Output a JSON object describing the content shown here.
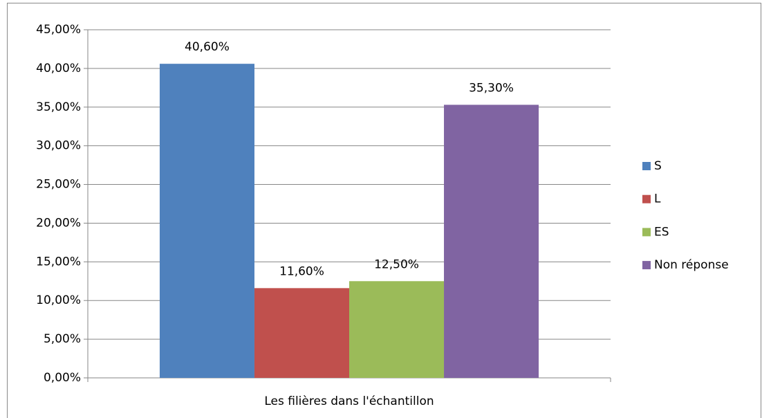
{
  "chart_data": {
    "type": "bar",
    "categories": [
      "Les filières dans l'échantillon"
    ],
    "series": [
      {
        "name": "S",
        "color": "#4f81bd",
        "values": [
          40.6
        ],
        "value_labels": [
          "40,60%"
        ]
      },
      {
        "name": "L",
        "color": "#c0504d",
        "values": [
          11.6
        ],
        "value_labels": [
          "11,60%"
        ]
      },
      {
        "name": "ES",
        "color": "#9bbb59",
        "values": [
          12.5
        ],
        "value_labels": [
          "12,50%"
        ]
      },
      {
        "name": "Non réponse",
        "color": "#8064a2",
        "values": [
          35.3
        ],
        "value_labels": [
          "35,30%"
        ]
      }
    ],
    "ylim": [
      0,
      45
    ],
    "yticks": [
      {
        "value": 0,
        "label": "0,00%"
      },
      {
        "value": 5,
        "label": "5,00%"
      },
      {
        "value": 10,
        "label": "10,00%"
      },
      {
        "value": 15,
        "label": "15,00%"
      },
      {
        "value": 20,
        "label": "20,00%"
      },
      {
        "value": 25,
        "label": "25,00%"
      },
      {
        "value": 30,
        "label": "30,00%"
      },
      {
        "value": 35,
        "label": "35,00%"
      },
      {
        "value": 40,
        "label": "40,00%"
      },
      {
        "value": 45,
        "label": "45,00%"
      }
    ],
    "grid": true,
    "legend": "right"
  }
}
